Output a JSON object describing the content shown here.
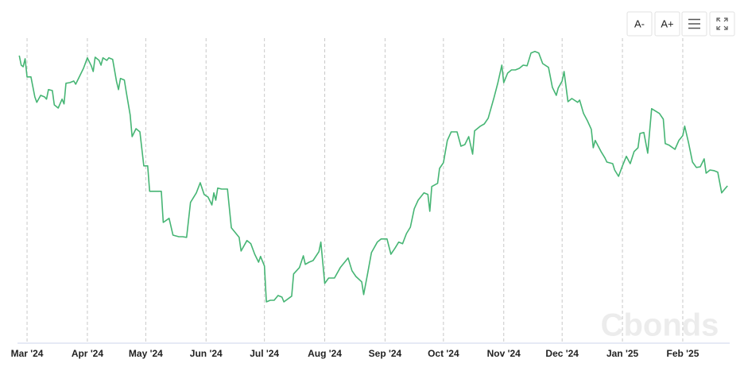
{
  "toolbar": {
    "buttons": [
      "A-",
      "A+"
    ]
  },
  "watermark": "Cbonds",
  "chart_data": {
    "type": "line",
    "color": "#46b574",
    "grid": true,
    "xlim": [
      -5,
      361
    ],
    "ylim": [
      0,
      100
    ],
    "xticks": [
      {
        "value": 0,
        "label": "Mar '24"
      },
      {
        "value": 31,
        "label": "Apr '24"
      },
      {
        "value": 61,
        "label": "May '24"
      },
      {
        "value": 92,
        "label": "Jun '24"
      },
      {
        "value": 122,
        "label": "Jul '24"
      },
      {
        "value": 153,
        "label": "Aug '24"
      },
      {
        "value": 184,
        "label": "Sep '24"
      },
      {
        "value": 214,
        "label": "Oct '24"
      },
      {
        "value": 245,
        "label": "Nov '24"
      },
      {
        "value": 275,
        "label": "Dec '24"
      },
      {
        "value": 306,
        "label": "Jan '25"
      },
      {
        "value": 337,
        "label": "Feb '25"
      }
    ],
    "x": [
      -4,
      -3,
      -2,
      -1,
      0,
      2,
      4,
      5,
      7,
      9,
      10,
      11,
      13,
      14,
      16,
      18,
      19,
      20,
      22,
      24,
      25,
      27,
      29,
      31,
      33,
      34,
      35,
      37,
      38,
      39,
      41,
      42,
      44,
      46,
      47,
      48,
      50,
      51,
      53,
      54,
      56,
      58,
      60,
      62,
      63,
      69,
      70,
      73,
      75,
      78,
      80,
      82,
      84,
      87,
      89,
      91,
      93,
      95,
      96,
      97,
      98,
      100,
      103,
      105,
      107,
      109,
      110,
      113,
      115,
      117,
      119,
      120,
      122,
      123,
      125,
      127,
      129,
      131,
      132,
      136,
      137,
      140,
      142,
      143,
      145,
      147,
      150,
      151,
      153,
      155,
      158,
      161,
      163,
      165,
      167,
      169,
      172,
      173,
      175,
      177,
      180,
      182,
      185,
      187,
      189,
      191,
      193,
      195,
      197,
      199,
      201,
      204,
      206,
      207,
      208,
      211,
      212,
      214,
      216,
      218,
      221,
      223,
      225,
      227,
      229,
      230,
      233,
      235,
      237,
      240,
      242,
      244,
      245,
      247,
      249,
      251,
      253,
      255,
      257,
      259,
      261,
      263,
      265,
      268,
      270,
      272,
      273,
      275,
      276,
      278,
      280,
      283,
      284,
      286,
      288,
      290,
      291,
      292,
      295,
      297,
      298,
      301,
      302,
      304,
      306,
      308,
      310,
      312,
      314,
      315,
      317,
      319,
      321,
      325,
      327,
      328,
      330,
      333,
      335,
      337,
      338,
      340,
      342,
      344,
      346,
      348,
      349,
      351,
      353,
      355,
      357,
      359,
      360
    ],
    "values": [
      92.5,
      89.5,
      89,
      91.5,
      85.8,
      85.8,
      79.5,
      77.8,
      80,
      79.5,
      78.8,
      81.8,
      81.5,
      77,
      76,
      78.8,
      77.3,
      83.8,
      84,
      84.5,
      83.5,
      86,
      88.5,
      91.8,
      89.3,
      87.5,
      92,
      91,
      89.5,
      91.8,
      91,
      91.8,
      91.3,
      84.3,
      81.8,
      85.3,
      84.8,
      81,
      73.8,
      67,
      69.5,
      68.5,
      57.8,
      57.8,
      49.8,
      49.8,
      40,
      41.3,
      36,
      35.5,
      35.5,
      35.3,
      46.3,
      49.3,
      52.5,
      48.8,
      48,
      45.5,
      49.3,
      47,
      50.8,
      50.5,
      50.5,
      38.3,
      36.8,
      35.3,
      31,
      34.3,
      33.3,
      30,
      27.5,
      29.3,
      26.3,
      15,
      15.5,
      15.5,
      17,
      16.5,
      15,
      16.8,
      23.8,
      25.8,
      29.5,
      26.8,
      27.5,
      28,
      30.8,
      33.8,
      20.8,
      22.5,
      22.5,
      25.8,
      27.3,
      28.8,
      24.8,
      23,
      21.3,
      17.3,
      23.8,
      30.5,
      33.8,
      34.8,
      34.8,
      30,
      31.8,
      33.8,
      33.3,
      36.5,
      38.5,
      44.3,
      47,
      49.3,
      48.8,
      43.5,
      51.3,
      52.3,
      57,
      58.8,
      65.8,
      68.5,
      68.5,
      64,
      64.5,
      67,
      61.5,
      68.8,
      70.3,
      71,
      72.8,
      79.3,
      84,
      89.5,
      84,
      87,
      88,
      88,
      88.5,
      89.5,
      89.3,
      93.3,
      93.8,
      93.3,
      90,
      88.8,
      82.5,
      80,
      82.3,
      84.5,
      87.5,
      78,
      79,
      77.8,
      78.5,
      74.3,
      72,
      69.3,
      63.5,
      65.8,
      62.3,
      60.3,
      59,
      58.5,
      56.5,
      54.5,
      57.8,
      60.8,
      58.5,
      62.3,
      63.5,
      68,
      68.3,
      61.8,
      75.8,
      74.3,
      72.5,
      64.8,
      64.3,
      63,
      65.8,
      67.3,
      70.3,
      65,
      59,
      57.3,
      57.5,
      60,
      55.5,
      56.5,
      56.3,
      55.8,
      49.3,
      50.8,
      51.5
    ]
  }
}
